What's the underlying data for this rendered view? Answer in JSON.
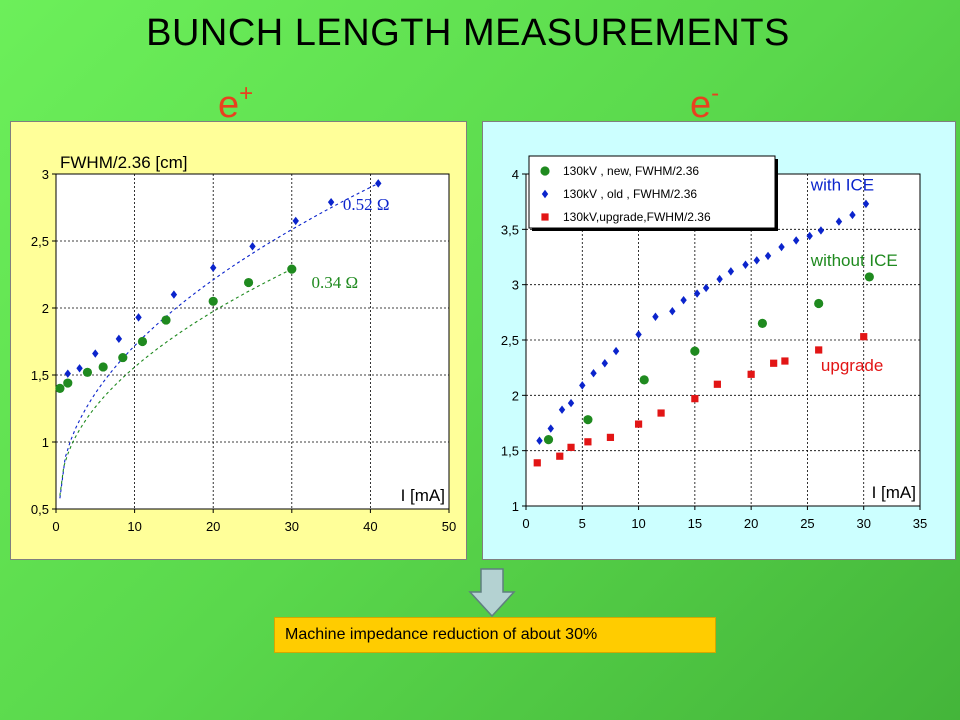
{
  "title": "BUNCH LENGTH MEASUREMENTS",
  "panels": {
    "left": {
      "label_main": "e",
      "label_sup": "+"
    },
    "right": {
      "label_main": "e",
      "label_sup": "-"
    }
  },
  "caption": "Machine impedance reduction of about 30%",
  "colors": {
    "green": "#1f8a1f",
    "blue": "#0b24cc",
    "red": "#e21515"
  },
  "chart_data": [
    {
      "type": "scatter",
      "title": "",
      "ylabel": "FWHM/2.36 [cm]",
      "xlabel": "I [mA]",
      "xlim": [
        0,
        50
      ],
      "ylim": [
        0.5,
        3
      ],
      "xticks": [
        0,
        10,
        20,
        30,
        40,
        50
      ],
      "yticks": [
        0.5,
        1,
        1.5,
        2,
        2.5,
        3
      ],
      "ytick_labels": [
        "0,5",
        "1",
        "1,5",
        "2",
        "2,5",
        "3"
      ],
      "grid": true,
      "series": [
        {
          "name": "",
          "marker": "diamond",
          "color": "#0b24cc",
          "x": [
            1.5,
            3.0,
            5.0,
            8.0,
            10.5,
            15.0,
            20.0,
            25.0,
            30.5,
            35.0,
            41.0
          ],
          "y": [
            1.51,
            1.55,
            1.66,
            1.77,
            1.93,
            2.1,
            2.3,
            2.46,
            2.65,
            2.79,
            2.93
          ]
        },
        {
          "name": "",
          "marker": "circle",
          "color": "#1f8a1f",
          "x": [
            0.5,
            1.5,
            4.0,
            6.0,
            8.5,
            11.0,
            14.0,
            20.0,
            24.5,
            30.0
          ],
          "y": [
            1.4,
            1.44,
            1.52,
            1.56,
            1.63,
            1.75,
            1.91,
            2.05,
            2.19,
            2.29
          ]
        }
      ],
      "fits": [
        {
          "label": "0.52 Ω",
          "color": "#0b24cc",
          "x0": 0.5,
          "y0": 0.58,
          "x1": 41,
          "y1": 2.93
        },
        {
          "label": "0.34 Ω",
          "color": "#1f8a1f",
          "x0": 0.5,
          "y0": 0.6,
          "x1": 30,
          "y1": 2.29
        }
      ]
    },
    {
      "type": "scatter",
      "title": "",
      "ylabel": "",
      "xlabel": "I [mA]",
      "xlim": [
        0,
        35
      ],
      "ylim": [
        1,
        4
      ],
      "xticks": [
        0,
        5,
        10,
        15,
        20,
        25,
        30,
        35
      ],
      "yticks": [
        1,
        1.5,
        2,
        2.5,
        3,
        3.5,
        4
      ],
      "ytick_labels": [
        "1",
        "1,5",
        "2",
        "2,5",
        "3",
        "3,5",
        "4"
      ],
      "grid": true,
      "legend": "top-left",
      "annotations": [
        {
          "text": "with ICE",
          "color": "#0b24cc",
          "x": 25.3,
          "y": 3.85
        },
        {
          "text": "without ICE",
          "color": "#1f8a1f",
          "x": 25.3,
          "y": 3.17
        },
        {
          "text": "upgrade",
          "color": "#e21515",
          "x": 26.2,
          "y": 2.22
        }
      ],
      "series": [
        {
          "name": "130kV , new, FWHM/2.36",
          "marker": "circle",
          "color": "#1f8a1f",
          "x": [
            2.0,
            5.5,
            10.5,
            15.0,
            21.0,
            26.0,
            30.5
          ],
          "y": [
            1.6,
            1.78,
            2.14,
            2.4,
            2.65,
            2.83,
            3.07
          ]
        },
        {
          "name": "130kV , old , FWHM/2.36",
          "marker": "diamond",
          "color": "#0b24cc",
          "x": [
            1.2,
            2.2,
            3.2,
            4.0,
            5.0,
            6.0,
            7.0,
            8.0,
            10.0,
            11.5,
            13.0,
            14.0,
            15.2,
            16.0,
            17.2,
            18.2,
            19.5,
            20.5,
            21.5,
            22.7,
            24.0,
            25.2,
            26.2,
            27.8,
            29.0,
            30.2
          ],
          "y": [
            1.59,
            1.7,
            1.87,
            1.93,
            2.09,
            2.2,
            2.29,
            2.4,
            2.55,
            2.71,
            2.76,
            2.86,
            2.92,
            2.97,
            3.05,
            3.12,
            3.18,
            3.22,
            3.26,
            3.34,
            3.4,
            3.44,
            3.49,
            3.57,
            3.63,
            3.73
          ]
        },
        {
          "name": "130kV,upgrade,FWHM/2.36",
          "marker": "square",
          "color": "#e21515",
          "x": [
            1.0,
            3.0,
            4.0,
            5.5,
            7.5,
            10.0,
            12.0,
            15.0,
            17.0,
            20.0,
            22.0,
            23.0,
            26.0,
            30.0
          ],
          "y": [
            1.39,
            1.45,
            1.53,
            1.58,
            1.62,
            1.74,
            1.84,
            1.97,
            2.1,
            2.19,
            2.29,
            2.31,
            2.41,
            2.53
          ]
        }
      ]
    }
  ]
}
